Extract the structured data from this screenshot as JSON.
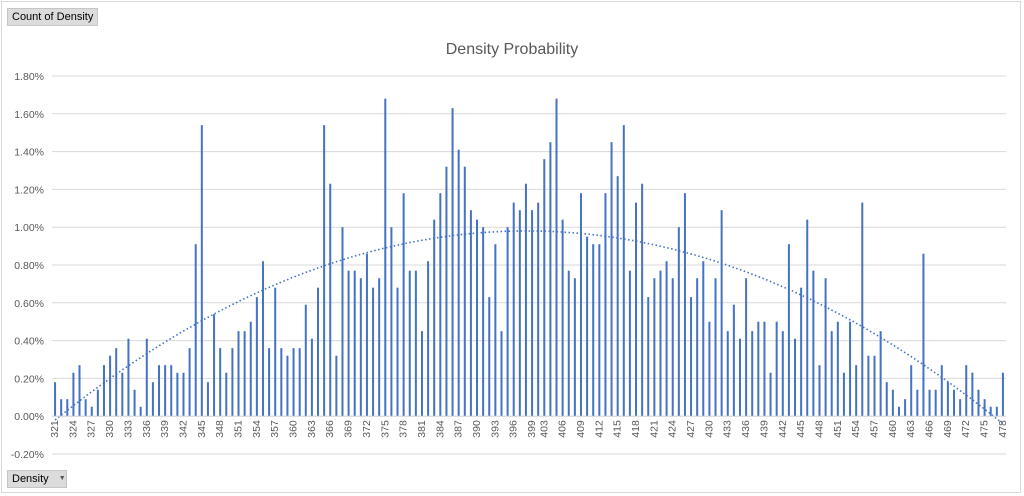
{
  "pivot": {
    "value_field_label": "Count of Density",
    "axis_field_label": "Density"
  },
  "colors": {
    "bar": "#4472c4",
    "trend": "#4472c4",
    "grid": "#d9d9d9",
    "text": "#595959"
  },
  "chart_data": {
    "type": "bar",
    "title": "Density Probability",
    "xlabel": "",
    "ylabel": "",
    "ylim": [
      -0.2,
      1.8
    ],
    "yticks": [
      "-0.20%",
      "0.00%",
      "0.20%",
      "0.40%",
      "0.60%",
      "0.80%",
      "1.00%",
      "1.20%",
      "1.40%",
      "1.60%",
      "1.80%"
    ],
    "y_unit": "%",
    "grid": true,
    "legend": "none",
    "x_start": 321,
    "x_end": 478,
    "x_tick_labels": [
      "321",
      "324",
      "327",
      "330",
      "333",
      "336",
      "339",
      "342",
      "345",
      "348",
      "351",
      "354",
      "357",
      "360",
      "363",
      "366",
      "369",
      "372",
      "375",
      "378",
      "381",
      "384",
      "387",
      "390",
      "393",
      "396",
      "399",
      "403",
      "406",
      "409",
      "412",
      "415",
      "418",
      "421",
      "424",
      "427",
      "430",
      "433",
      "436",
      "439",
      "442",
      "445",
      "448",
      "451",
      "454",
      "457",
      "460",
      "463",
      "466",
      "469",
      "472",
      "475",
      "478"
    ],
    "values": [
      0.18,
      0.09,
      0.09,
      0.23,
      0.27,
      0.09,
      0.05,
      0.14,
      0.27,
      0.32,
      0.36,
      0.23,
      0.41,
      0.14,
      0.05,
      0.41,
      0.18,
      0.27,
      0.27,
      0.27,
      0.23,
      0.23,
      0.36,
      0.91,
      1.54,
      0.18,
      0.54,
      0.36,
      0.23,
      0.36,
      0.45,
      0.45,
      0.5,
      0.63,
      0.82,
      0.36,
      0.68,
      0.36,
      0.32,
      0.36,
      0.36,
      0.59,
      0.41,
      0.68,
      1.54,
      1.23,
      0.32,
      1.0,
      0.77,
      0.77,
      0.73,
      0.86,
      0.68,
      0.73,
      1.68,
      1.0,
      0.68,
      1.18,
      0.77,
      0.77,
      0.45,
      0.82,
      1.04,
      1.18,
      1.32,
      1.63,
      1.41,
      1.32,
      1.09,
      1.04,
      1.0,
      0.63,
      0.91,
      0.45,
      1.0,
      1.13,
      1.09,
      1.23,
      1.09,
      1.13,
      1.36,
      1.45,
      1.68,
      1.04,
      0.77,
      0.73,
      1.18,
      0.95,
      0.91,
      0.91,
      1.18,
      1.45,
      1.27,
      1.54,
      0.77,
      1.13,
      1.23,
      0.63,
      0.73,
      0.77,
      0.82,
      0.73,
      1.0,
      1.18,
      0.63,
      0.73,
      0.82,
      0.5,
      0.73,
      1.09,
      0.45,
      0.59,
      0.41,
      0.73,
      0.45,
      0.5,
      0.5,
      0.23,
      0.5,
      0.45,
      0.91,
      0.41,
      0.68,
      1.04,
      0.77,
      0.27,
      0.73,
      0.45,
      0.5,
      0.23,
      0.5,
      0.27,
      1.13,
      0.32,
      0.32,
      0.45,
      0.18,
      0.14,
      0.05,
      0.09,
      0.27,
      0.14,
      0.86,
      0.14,
      0.14,
      0.27,
      0.18,
      0.14,
      0.09,
      0.27,
      0.23,
      0.14,
      0.09,
      0.05,
      0.05,
      0.23
    ],
    "trendline": {
      "type": "polynomial",
      "style": "dotted",
      "peak_x": 400,
      "peak_y": 0.98,
      "y_at_x_start": -0.02,
      "y_at_x_end": -0.04
    }
  }
}
